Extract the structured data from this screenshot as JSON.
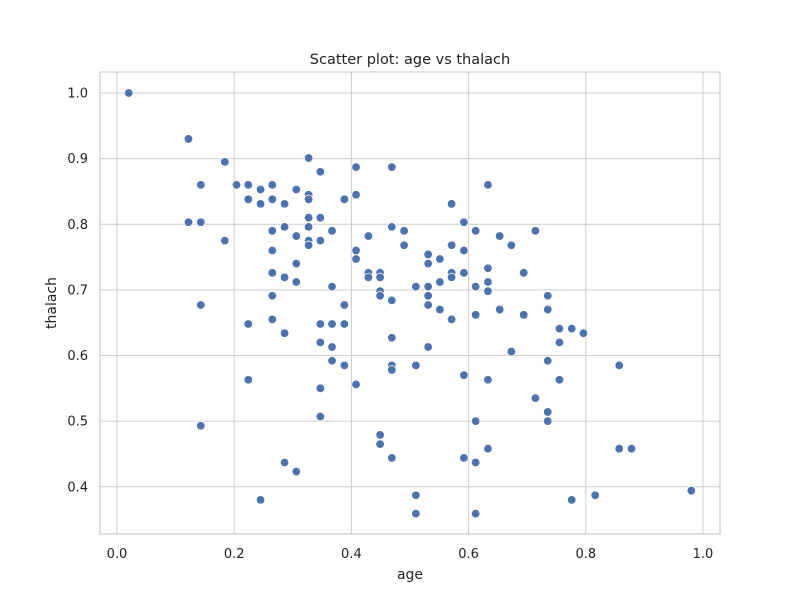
{
  "chart_data": {
    "type": "scatter",
    "title": "Scatter plot: age vs thalach",
    "xlabel": "age",
    "ylabel": "thalach",
    "xlim": [
      -0.029,
      1.029
    ],
    "ylim": [
      0.328,
      1.032
    ],
    "xticks": [
      0.0,
      0.2,
      0.4,
      0.6,
      0.8,
      1.0
    ],
    "yticks": [
      0.4,
      0.5,
      0.6,
      0.7,
      0.8,
      0.9,
      1.0
    ],
    "xtick_labels": [
      "0.0",
      "0.2",
      "0.4",
      "0.6",
      "0.8",
      "1.0"
    ],
    "ytick_labels": [
      "0.4",
      "0.5",
      "0.6",
      "0.7",
      "0.8",
      "0.9",
      "1.0"
    ],
    "grid": true,
    "legend": "none",
    "marker_color": "#4c72b0",
    "points": [
      [
        0.02,
        1.0
      ],
      [
        0.122,
        0.93
      ],
      [
        0.122,
        0.803
      ],
      [
        0.143,
        0.86
      ],
      [
        0.143,
        0.803
      ],
      [
        0.143,
        0.677
      ],
      [
        0.143,
        0.493
      ],
      [
        0.184,
        0.895
      ],
      [
        0.184,
        0.775
      ],
      [
        0.204,
        0.86
      ],
      [
        0.224,
        0.86
      ],
      [
        0.224,
        0.838
      ],
      [
        0.224,
        0.648
      ],
      [
        0.224,
        0.563
      ],
      [
        0.245,
        0.853
      ],
      [
        0.245,
        0.831
      ],
      [
        0.245,
        0.38
      ],
      [
        0.265,
        0.86
      ],
      [
        0.265,
        0.838
      ],
      [
        0.265,
        0.79
      ],
      [
        0.265,
        0.76
      ],
      [
        0.265,
        0.726
      ],
      [
        0.265,
        0.691
      ],
      [
        0.265,
        0.655
      ],
      [
        0.286,
        0.831
      ],
      [
        0.286,
        0.796
      ],
      [
        0.286,
        0.719
      ],
      [
        0.286,
        0.634
      ],
      [
        0.286,
        0.437
      ],
      [
        0.306,
        0.853
      ],
      [
        0.306,
        0.782
      ],
      [
        0.306,
        0.74
      ],
      [
        0.306,
        0.712
      ],
      [
        0.306,
        0.423
      ],
      [
        0.327,
        0.901
      ],
      [
        0.327,
        0.845
      ],
      [
        0.327,
        0.838
      ],
      [
        0.327,
        0.81
      ],
      [
        0.327,
        0.796
      ],
      [
        0.327,
        0.775
      ],
      [
        0.327,
        0.768
      ],
      [
        0.347,
        0.88
      ],
      [
        0.347,
        0.81
      ],
      [
        0.347,
        0.775
      ],
      [
        0.347,
        0.648
      ],
      [
        0.347,
        0.62
      ],
      [
        0.347,
        0.55
      ],
      [
        0.347,
        0.507
      ],
      [
        0.367,
        0.79
      ],
      [
        0.367,
        0.705
      ],
      [
        0.367,
        0.648
      ],
      [
        0.367,
        0.613
      ],
      [
        0.367,
        0.592
      ],
      [
        0.388,
        0.838
      ],
      [
        0.388,
        0.677
      ],
      [
        0.388,
        0.648
      ],
      [
        0.388,
        0.585
      ],
      [
        0.408,
        0.887
      ],
      [
        0.408,
        0.845
      ],
      [
        0.408,
        0.76
      ],
      [
        0.408,
        0.747
      ],
      [
        0.408,
        0.556
      ],
      [
        0.429,
        0.782
      ],
      [
        0.429,
        0.726
      ],
      [
        0.429,
        0.719
      ],
      [
        0.449,
        0.726
      ],
      [
        0.449,
        0.719
      ],
      [
        0.449,
        0.698
      ],
      [
        0.449,
        0.691
      ],
      [
        0.449,
        0.479
      ],
      [
        0.449,
        0.465
      ],
      [
        0.469,
        0.887
      ],
      [
        0.469,
        0.796
      ],
      [
        0.469,
        0.684
      ],
      [
        0.469,
        0.627
      ],
      [
        0.469,
        0.585
      ],
      [
        0.469,
        0.578
      ],
      [
        0.469,
        0.444
      ],
      [
        0.49,
        0.79
      ],
      [
        0.49,
        0.768
      ],
      [
        0.51,
        0.705
      ],
      [
        0.51,
        0.585
      ],
      [
        0.51,
        0.387
      ],
      [
        0.51,
        0.359
      ],
      [
        0.531,
        0.754
      ],
      [
        0.531,
        0.74
      ],
      [
        0.531,
        0.705
      ],
      [
        0.531,
        0.691
      ],
      [
        0.531,
        0.677
      ],
      [
        0.531,
        0.613
      ],
      [
        0.551,
        0.747
      ],
      [
        0.551,
        0.712
      ],
      [
        0.551,
        0.67
      ],
      [
        0.571,
        0.831
      ],
      [
        0.571,
        0.768
      ],
      [
        0.571,
        0.726
      ],
      [
        0.571,
        0.719
      ],
      [
        0.571,
        0.655
      ],
      [
        0.592,
        0.803
      ],
      [
        0.592,
        0.76
      ],
      [
        0.592,
        0.726
      ],
      [
        0.592,
        0.57
      ],
      [
        0.592,
        0.444
      ],
      [
        0.612,
        0.79
      ],
      [
        0.612,
        0.705
      ],
      [
        0.612,
        0.662
      ],
      [
        0.612,
        0.5
      ],
      [
        0.612,
        0.437
      ],
      [
        0.612,
        0.359
      ],
      [
        0.633,
        0.86
      ],
      [
        0.633,
        0.733
      ],
      [
        0.633,
        0.712
      ],
      [
        0.633,
        0.698
      ],
      [
        0.633,
        0.563
      ],
      [
        0.633,
        0.458
      ],
      [
        0.653,
        0.782
      ],
      [
        0.653,
        0.67
      ],
      [
        0.673,
        0.768
      ],
      [
        0.673,
        0.606
      ],
      [
        0.694,
        0.726
      ],
      [
        0.694,
        0.662
      ],
      [
        0.714,
        0.79
      ],
      [
        0.714,
        0.535
      ],
      [
        0.735,
        0.691
      ],
      [
        0.735,
        0.67
      ],
      [
        0.735,
        0.592
      ],
      [
        0.735,
        0.514
      ],
      [
        0.735,
        0.5
      ],
      [
        0.755,
        0.641
      ],
      [
        0.755,
        0.62
      ],
      [
        0.755,
        0.563
      ],
      [
        0.776,
        0.641
      ],
      [
        0.776,
        0.38
      ],
      [
        0.796,
        0.634
      ],
      [
        0.816,
        0.387
      ],
      [
        0.857,
        0.585
      ],
      [
        0.857,
        0.458
      ],
      [
        0.878,
        0.458
      ],
      [
        0.98,
        0.394
      ]
    ]
  }
}
